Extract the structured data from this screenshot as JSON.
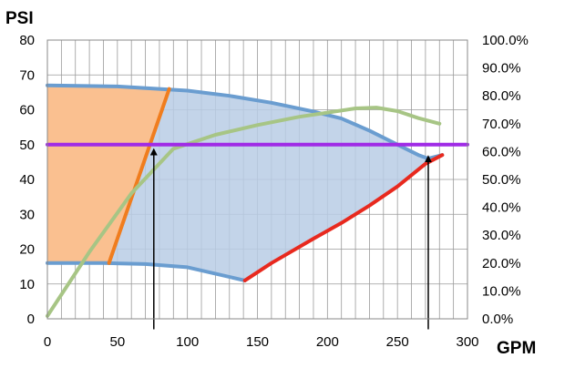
{
  "chart_data": {
    "type": "line",
    "title": "",
    "ylabel": "PSI",
    "xlabel": "GPM",
    "xlim": [
      0,
      300
    ],
    "ylim": [
      0,
      80
    ],
    "y2lim": [
      0,
      100
    ],
    "x_ticks": [
      "0",
      "50",
      "100",
      "150",
      "200",
      "250",
      "300"
    ],
    "x_tick_values": [
      0,
      50,
      100,
      150,
      200,
      250,
      300
    ],
    "y_ticks": [
      "0",
      "10",
      "20",
      "30",
      "40",
      "50",
      "60",
      "70",
      "80"
    ],
    "y_tick_values": [
      0,
      10,
      20,
      30,
      40,
      50,
      60,
      70,
      80
    ],
    "y2_ticks": [
      "0.0%",
      "10.0%",
      "20.0%",
      "30.0%",
      "40.0%",
      "50.0%",
      "60.0%",
      "70.0%",
      "80.0%",
      "90.0%",
      "100.0%"
    ],
    "y2_tick_values": [
      0,
      10,
      20,
      30,
      40,
      50,
      60,
      70,
      80,
      90,
      100
    ],
    "grid": true,
    "colors": {
      "orange_fill": "#FAC090",
      "blue_fill": "#B9CDE5",
      "blue_line": "#6A9DD0",
      "orange_line": "#F07D1E",
      "green_line": "#A7C585",
      "red_line": "#E8291E",
      "purple_line": "#A02BE6",
      "arrow": "#000000"
    },
    "regions": {
      "orange_region": [
        [
          0,
          16
        ],
        [
          0,
          67
        ],
        [
          87,
          66
        ],
        [
          44,
          16
        ]
      ],
      "blue_region_upper": [
        [
          0,
          67
        ],
        [
          50,
          66.7
        ],
        [
          100,
          65.5
        ],
        [
          130,
          64
        ],
        [
          160,
          62
        ],
        [
          190,
          59.5
        ],
        [
          210,
          57.5
        ],
        [
          230,
          54
        ],
        [
          250,
          50
        ],
        [
          265,
          47
        ],
        [
          272,
          46
        ],
        [
          282,
          47
        ]
      ],
      "blue_region_lower": [
        [
          282,
          47
        ],
        [
          270,
          44.5
        ],
        [
          250,
          38
        ],
        [
          230,
          32.5
        ],
        [
          210,
          27.5
        ],
        [
          190,
          23
        ],
        [
          160,
          16
        ],
        [
          141,
          11
        ],
        [
          100,
          14.8
        ],
        [
          70,
          15.7
        ],
        [
          40,
          16
        ],
        [
          0,
          16
        ]
      ]
    },
    "series": [
      {
        "color_key": "blue_line",
        "x": [
          0,
          50,
          100,
          130,
          160,
          190,
          210,
          230,
          250,
          265,
          272,
          282
        ],
        "y": [
          67,
          66.7,
          65.5,
          64,
          62,
          59.5,
          57.5,
          54,
          50,
          47,
          46,
          47
        ]
      },
      {
        "color_key": "blue_line",
        "x": [
          0,
          40,
          70,
          100,
          141
        ],
        "y": [
          16,
          16,
          15.7,
          14.8,
          11
        ]
      },
      {
        "color_key": "orange_line",
        "x": [
          44,
          87
        ],
        "y": [
          16,
          66
        ]
      },
      {
        "color_key": "red_line",
        "x": [
          141,
          160,
          190,
          210,
          230,
          250,
          270,
          282
        ],
        "y": [
          11,
          16,
          23,
          27.5,
          32.5,
          38,
          44.5,
          47
        ]
      },
      {
        "color_key": "green_line",
        "axis": "right",
        "x": [
          0,
          30,
          60,
          90,
          120,
          150,
          180,
          200,
          220,
          235,
          250,
          265,
          280
        ],
        "y": [
          1,
          24,
          45,
          61,
          66,
          69.5,
          72.5,
          74,
          75.5,
          75.8,
          74.5,
          72,
          70
        ]
      },
      {
        "color_key": "purple_line",
        "x": [
          0,
          300
        ],
        "y": [
          50,
          50
        ]
      }
    ],
    "arrows": [
      {
        "x": 76,
        "from_y": -3,
        "to_y": 49
      },
      {
        "x": 272,
        "from_y": -3,
        "to_y": 47
      }
    ]
  }
}
